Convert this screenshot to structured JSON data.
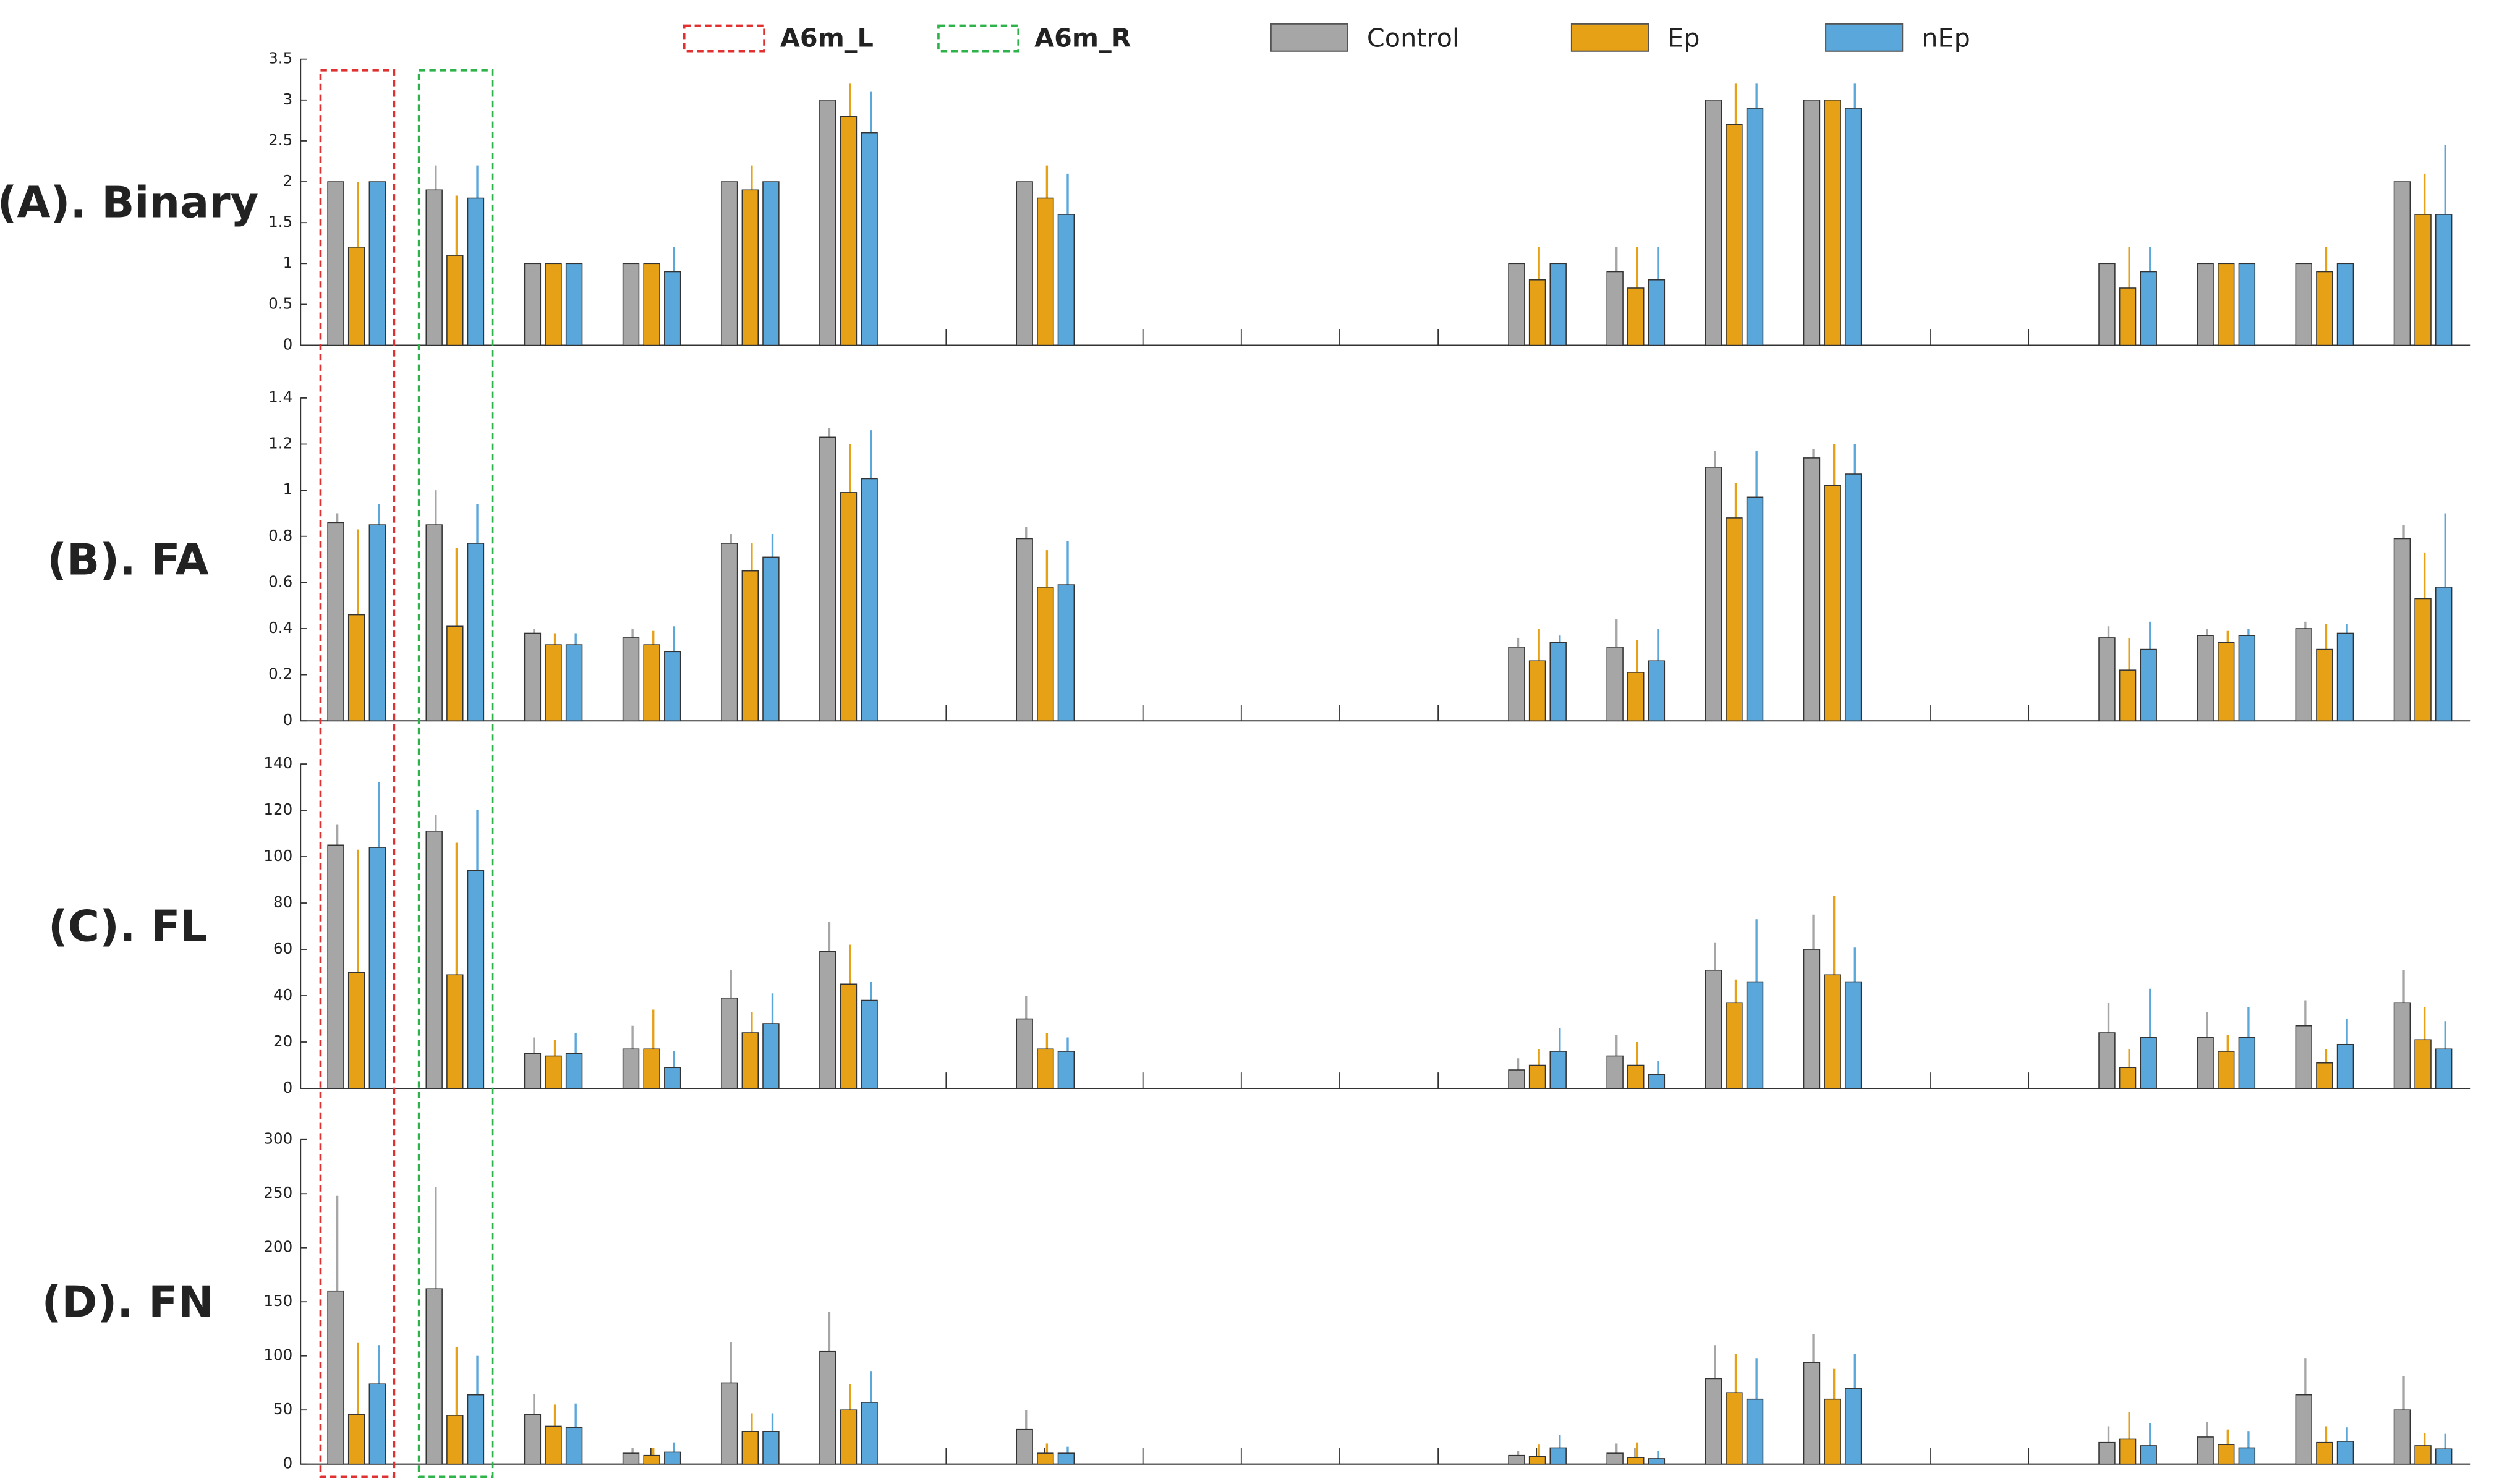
{
  "legend": {
    "entries": [
      {
        "name": "Control",
        "color": "#a6a6a6"
      },
      {
        "name": "Ep",
        "color": "#e6a116"
      },
      {
        "name": "nEp",
        "color": "#5aa7dc"
      }
    ],
    "boxes": [
      {
        "name": "A6m_L",
        "color": "#e03030",
        "category": 0
      },
      {
        "name": "A6m_R",
        "color": "#2db34a",
        "category": 1
      }
    ]
  },
  "chart_data": [
    {
      "type": "bar",
      "title": "(A). Binary",
      "categories": [
        null,
        null,
        null,
        null,
        null,
        null,
        null,
        null,
        null,
        null,
        null,
        null,
        null,
        null,
        null,
        null,
        null,
        null,
        null,
        null,
        null,
        null
      ],
      "ylim": [
        0,
        3.5
      ],
      "yticks": [
        0,
        0.5,
        1,
        1.5,
        2,
        2.5,
        3,
        3.5
      ],
      "series": [
        {
          "values": [
            2,
            1.9,
            1,
            1,
            2,
            3,
            null,
            2,
            null,
            null,
            null,
            null,
            1,
            0.9,
            3,
            3,
            null,
            null,
            1,
            1,
            1,
            2
          ],
          "errors": [
            0,
            0.3,
            0,
            0,
            0,
            0,
            null,
            0,
            null,
            null,
            null,
            null,
            0,
            0.3,
            0,
            0,
            null,
            null,
            0,
            0,
            0,
            0
          ]
        },
        {
          "values": [
            1.2,
            1.1,
            1,
            1,
            1.9,
            2.8,
            null,
            1.8,
            null,
            null,
            null,
            null,
            0.8,
            0.7,
            2.7,
            3,
            null,
            null,
            0.7,
            1,
            0.9,
            1.6
          ],
          "errors": [
            0.8,
            0.73,
            0,
            0,
            0.3,
            0.4,
            null,
            0.4,
            null,
            null,
            null,
            null,
            0.4,
            0.5,
            0.5,
            0,
            null,
            null,
            0.5,
            0,
            0.3,
            0.5
          ]
        },
        {
          "values": [
            2,
            1.8,
            1,
            0.9,
            2,
            2.6,
            null,
            1.6,
            null,
            null,
            null,
            null,
            1,
            0.8,
            2.9,
            2.9,
            null,
            null,
            0.9,
            1,
            1,
            1.6
          ],
          "errors": [
            0,
            0.4,
            0,
            0.3,
            0,
            0.5,
            null,
            0.5,
            null,
            null,
            null,
            null,
            0,
            0.4,
            0.3,
            0.3,
            null,
            null,
            0.3,
            0,
            0,
            0.85
          ]
        }
      ]
    },
    {
      "type": "bar",
      "title": "(B). FA",
      "categories": [
        null,
        null,
        null,
        null,
        null,
        null,
        null,
        null,
        null,
        null,
        null,
        null,
        null,
        null,
        null,
        null,
        null,
        null,
        null,
        null,
        null,
        null
      ],
      "ylim": [
        0,
        1.4
      ],
      "yticks": [
        0,
        0.2,
        0.4,
        0.6,
        0.8,
        1,
        1.2,
        1.4
      ],
      "series": [
        {
          "values": [
            0.86,
            0.85,
            0.38,
            0.36,
            0.77,
            1.23,
            null,
            0.79,
            null,
            null,
            null,
            null,
            0.32,
            0.32,
            1.1,
            1.14,
            null,
            null,
            0.36,
            0.37,
            0.4,
            0.79
          ],
          "errors": [
            0.04,
            0.15,
            0.02,
            0.04,
            0.04,
            0.04,
            null,
            0.05,
            null,
            null,
            null,
            null,
            0.04,
            0.12,
            0.07,
            0.04,
            null,
            null,
            0.05,
            0.03,
            0.03,
            0.06
          ]
        },
        {
          "values": [
            0.46,
            0.41,
            0.33,
            0.33,
            0.65,
            0.99,
            null,
            0.58,
            null,
            null,
            null,
            null,
            0.26,
            0.21,
            0.88,
            1.02,
            null,
            null,
            0.22,
            0.34,
            0.31,
            0.53
          ],
          "errors": [
            0.37,
            0.34,
            0.05,
            0.06,
            0.12,
            0.21,
            null,
            0.16,
            null,
            null,
            null,
            null,
            0.14,
            0.14,
            0.15,
            0.18,
            null,
            null,
            0.14,
            0.05,
            0.11,
            0.2
          ]
        },
        {
          "values": [
            0.85,
            0.77,
            0.33,
            0.3,
            0.71,
            1.05,
            null,
            0.59,
            null,
            null,
            null,
            null,
            0.34,
            0.26,
            0.97,
            1.07,
            null,
            null,
            0.31,
            0.37,
            0.38,
            0.58
          ],
          "errors": [
            0.09,
            0.17,
            0.05,
            0.11,
            0.1,
            0.21,
            null,
            0.19,
            null,
            null,
            null,
            null,
            0.03,
            0.14,
            0.2,
            0.13,
            null,
            null,
            0.12,
            0.03,
            0.04,
            0.32
          ]
        }
      ]
    },
    {
      "type": "bar",
      "title": "(C). FL",
      "categories": [
        null,
        null,
        null,
        null,
        null,
        null,
        null,
        null,
        null,
        null,
        null,
        null,
        null,
        null,
        null,
        null,
        null,
        null,
        null,
        null,
        null,
        null
      ],
      "ylim": [
        0,
        140
      ],
      "yticks": [
        0,
        20,
        40,
        60,
        80,
        100,
        120,
        140
      ],
      "series": [
        {
          "values": [
            105,
            111,
            15,
            17,
            39,
            59,
            null,
            30,
            null,
            null,
            null,
            null,
            8,
            14,
            51,
            60,
            null,
            null,
            24,
            22,
            27,
            37
          ],
          "errors": [
            9,
            7,
            7,
            10,
            12,
            13,
            null,
            10,
            null,
            null,
            null,
            null,
            5,
            9,
            12,
            15,
            null,
            null,
            13,
            11,
            11,
            14
          ]
        },
        {
          "values": [
            50,
            49,
            14,
            17,
            24,
            45,
            null,
            17,
            null,
            null,
            null,
            null,
            10,
            10,
            37,
            49,
            null,
            null,
            9,
            16,
            11,
            21
          ],
          "errors": [
            53,
            57,
            7,
            17,
            9,
            17,
            null,
            7,
            null,
            null,
            null,
            null,
            7,
            10,
            10,
            34,
            null,
            null,
            8,
            7,
            6,
            14
          ]
        },
        {
          "values": [
            104,
            94,
            15,
            9,
            28,
            38,
            null,
            16,
            null,
            null,
            null,
            null,
            16,
            6,
            46,
            46,
            null,
            null,
            22,
            22,
            19,
            17
          ],
          "errors": [
            28,
            26,
            9,
            7,
            13,
            8,
            null,
            6,
            null,
            null,
            null,
            null,
            10,
            6,
            27,
            15,
            null,
            null,
            21,
            13,
            11,
            12
          ]
        }
      ]
    },
    {
      "type": "bar",
      "title": "(D). FN",
      "categories": [
        null,
        null,
        null,
        null,
        null,
        null,
        null,
        null,
        null,
        null,
        null,
        null,
        null,
        null,
        null,
        null,
        null,
        null,
        null,
        null,
        null,
        null
      ],
      "ylim": [
        0,
        300
      ],
      "yticks": [
        0,
        50,
        100,
        150,
        200,
        250,
        300
      ],
      "series": [
        {
          "values": [
            160,
            162,
            46,
            10,
            75,
            104,
            null,
            32,
            null,
            null,
            null,
            null,
            8,
            10,
            79,
            94,
            null,
            null,
            20,
            25,
            64,
            50
          ],
          "errors": [
            88,
            94,
            19,
            5,
            38,
            37,
            null,
            18,
            null,
            null,
            null,
            null,
            4,
            9,
            31,
            26,
            null,
            null,
            15,
            14,
            34,
            31
          ]
        },
        {
          "values": [
            46,
            45,
            35,
            8,
            30,
            50,
            null,
            10,
            null,
            null,
            null,
            null,
            7,
            6,
            66,
            60,
            null,
            null,
            23,
            18,
            20,
            17
          ],
          "errors": [
            66,
            63,
            20,
            7,
            17,
            24,
            null,
            9,
            null,
            null,
            null,
            null,
            11,
            14,
            36,
            28,
            null,
            null,
            25,
            14,
            15,
            12
          ]
        },
        {
          "values": [
            74,
            64,
            34,
            11,
            30,
            57,
            null,
            10,
            null,
            null,
            null,
            null,
            15,
            5,
            60,
            70,
            null,
            null,
            17,
            15,
            21,
            14
          ],
          "errors": [
            36,
            36,
            22,
            9,
            17,
            29,
            null,
            6,
            null,
            null,
            null,
            null,
            12,
            7,
            38,
            32,
            null,
            null,
            21,
            15,
            13,
            14
          ]
        }
      ]
    }
  ]
}
